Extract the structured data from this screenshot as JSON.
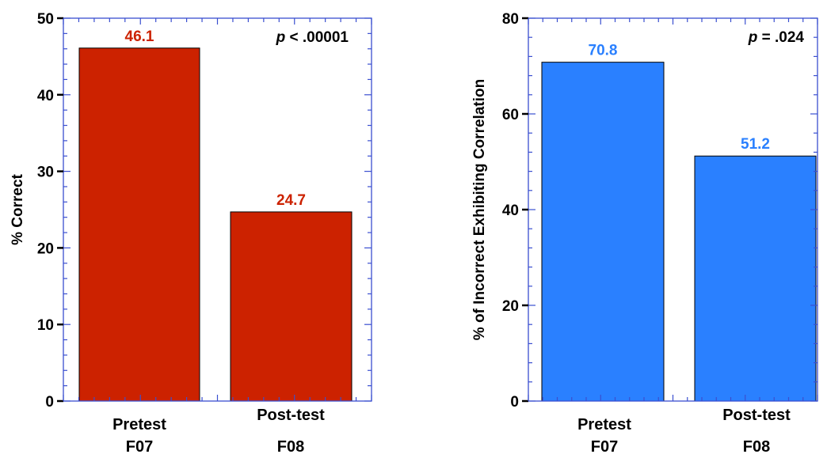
{
  "chart_data": [
    {
      "type": "bar",
      "categories": [
        "Pretest",
        "Post-test"
      ],
      "category_sublabels": [
        "F07",
        "F08"
      ],
      "values": [
        46.1,
        24.7
      ],
      "value_labels": [
        "46.1",
        "24.7"
      ],
      "ylabel": "% Correct",
      "ylim": [
        0,
        50
      ],
      "yticks": [
        "0",
        "10",
        "20",
        "30",
        "40",
        "50"
      ],
      "annotation": {
        "italic": "p",
        "text": " < .00001"
      },
      "bar_color": "#cc2200",
      "label_color": "#cc2200",
      "axis_color": "#3a4fd0",
      "grid": false
    },
    {
      "type": "bar",
      "categories": [
        "Pretest",
        "Post-test"
      ],
      "category_sublabels": [
        "F07",
        "F08"
      ],
      "values": [
        70.8,
        51.2
      ],
      "value_labels": [
        "70.8",
        "51.2"
      ],
      "ylabel": "% of Incorrect Exhibiting Correlation",
      "ylim": [
        0,
        80
      ],
      "yticks": [
        "0",
        "20",
        "40",
        "60",
        "80"
      ],
      "annotation": {
        "italic": "p",
        "text": " = .024"
      },
      "bar_color": "#2a80ff",
      "label_color": "#2a80ff",
      "axis_color": "#3a4fd0",
      "grid": false
    }
  ]
}
